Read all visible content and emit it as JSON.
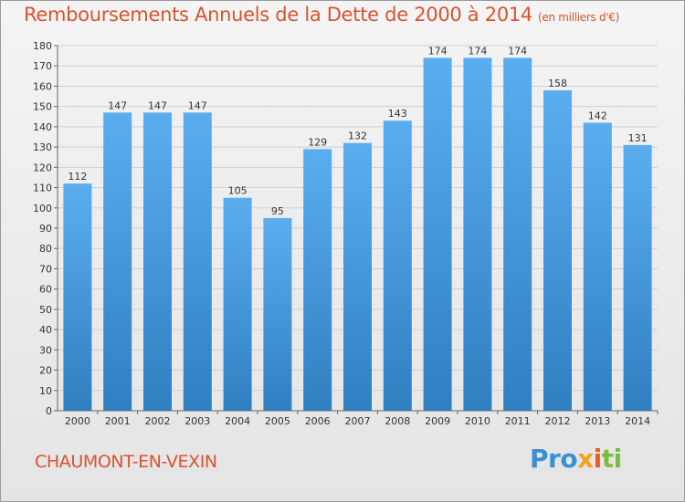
{
  "header": {
    "title": "Remboursements Annuels de la Dette de 2000 à 2014",
    "unit": "(en milliers d'€)"
  },
  "footer": {
    "commune": "CHAUMONT-EN-VEXIN",
    "logo": {
      "p1": "Pro",
      "p2": "x",
      "p3": "i",
      "p4": "ti"
    }
  },
  "colors": {
    "bar_top": "#5aaef0",
    "bar_bottom": "#2f7fc1",
    "title": "#d9532e"
  },
  "chart_data": {
    "type": "bar",
    "title": "Remboursements Annuels de la Dette de 2000 à 2014",
    "categories": [
      "2000",
      "2001",
      "2002",
      "2003",
      "2004",
      "2005",
      "2006",
      "2007",
      "2008",
      "2009",
      "2010",
      "2011",
      "2012",
      "2013",
      "2014"
    ],
    "values": [
      112,
      147,
      147,
      147,
      105,
      95,
      129,
      132,
      143,
      174,
      174,
      174,
      158,
      142,
      131
    ],
    "ylim": [
      0,
      180
    ],
    "ytick_step": 10,
    "grid": true
  }
}
